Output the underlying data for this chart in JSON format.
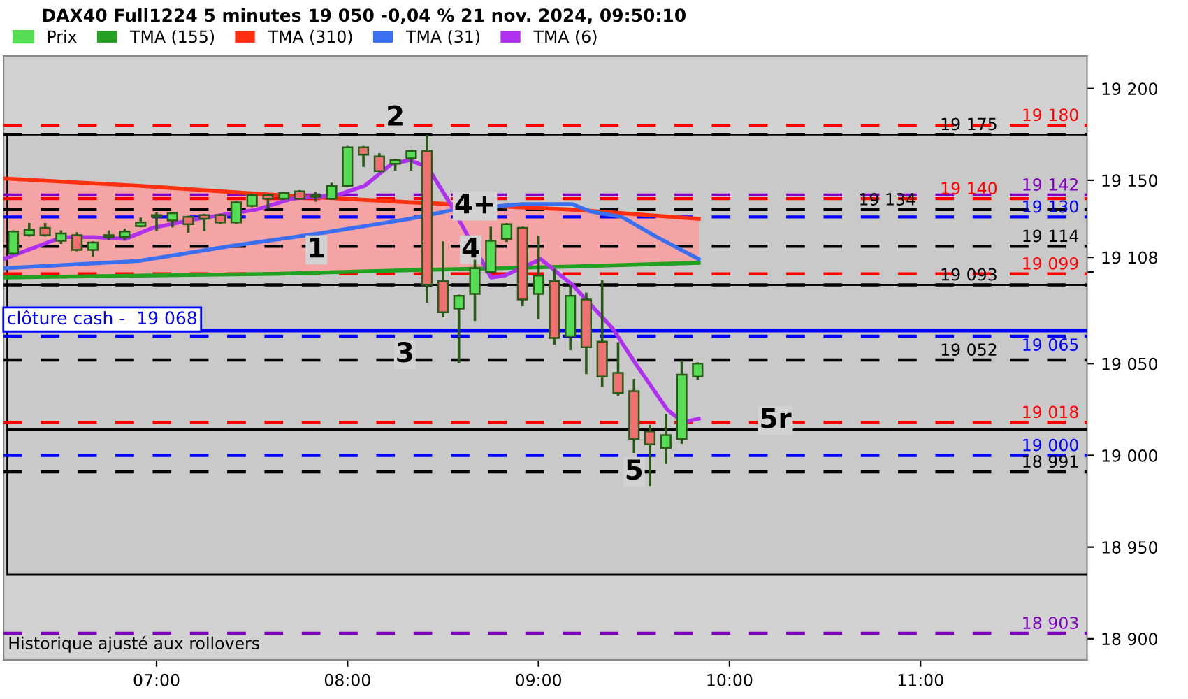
{
  "chart_data": {
    "type": "candlestick",
    "title": "DAX40 Full1224 5 minutes 19 050 -0,04 % 21 nov. 2024, 09:50:10",
    "xlim": [
      6.199,
      11.872
    ],
    "ylim": [
      18888.5,
      19217.8
    ],
    "xticks": [
      {
        "value": 7,
        "label": "07:00"
      },
      {
        "value": 8,
        "label": "08:00"
      },
      {
        "value": 9,
        "label": "09:00"
      },
      {
        "value": 10,
        "label": "10:00"
      },
      {
        "value": 11,
        "label": "11:00"
      }
    ],
    "yticks": [
      {
        "value": 18900,
        "label": "18 900"
      },
      {
        "value": 18950,
        "label": "18 950"
      },
      {
        "value": 19000,
        "label": "19 000"
      },
      {
        "value": 19050,
        "label": "19 050"
      },
      {
        "value": 19100,
        "label": null
      },
      {
        "value": 19108,
        "label": "19 108"
      },
      {
        "value": 19150,
        "label": "19 150"
      },
      {
        "value": 19200,
        "label": "19 200"
      }
    ],
    "grid": false,
    "legend": "top left",
    "series": [
      {
        "name": "Prix",
        "colors": [
          "#55dd55",
          "#55dd55",
          "#ee7070",
          "#55dd55",
          "#ee7070",
          "#55dd55",
          "#55dd55",
          "#55dd55",
          "#55dd55",
          "#55dd55",
          "#55dd55",
          "#ee7070",
          "#ee7070",
          "#ee7070",
          "#55dd55",
          "#55dd55",
          "#ee7070",
          "#55dd55",
          "#ee7070",
          "#55dd55",
          "#55dd55",
          "#55dd55",
          "#ee7070",
          "#ee7070",
          "#55dd55",
          "#55dd55",
          "#ee7070",
          "#ee7070",
          "#55dd55",
          "#55dd55",
          "#55dd55",
          "#55dd55",
          "#ee7070",
          "#55dd55",
          "#ee7070",
          "#55dd55",
          "#ee7070",
          "#ee7070",
          "#ee7070",
          "#ee7070",
          "#ee7070",
          "#55dd55",
          "#55dd55",
          "#55dd55"
        ],
        "x": [
          6.25,
          6.3333,
          6.4167,
          6.5,
          6.5833,
          6.6667,
          6.75,
          6.8333,
          6.9167,
          7,
          7.0833,
          7.1667,
          7.25,
          7.3333,
          7.4167,
          7.5,
          7.5833,
          7.6667,
          7.75,
          7.8333,
          7.9167,
          8,
          8.0833,
          8.1667,
          8.25,
          8.3333,
          8.4167,
          8.5,
          8.5833,
          8.6667,
          8.75,
          8.8333,
          8.9167,
          9,
          9.0833,
          9.1667,
          9.25,
          9.3333,
          9.4167,
          9.5,
          9.5833,
          9.6667,
          9.75,
          9.8333
        ],
        "ohlc": [
          [
            19110,
            19122,
            19110,
            19122
          ],
          [
            19120,
            19126,
            19120,
            19123
          ],
          [
            19124,
            19126,
            19120,
            19120
          ],
          [
            19117,
            19122,
            19116,
            19121
          ],
          [
            19120,
            19121,
            19112,
            19112
          ],
          [
            19112,
            19116,
            19109,
            19116
          ],
          [
            19119,
            19122,
            19118,
            19120
          ],
          [
            19119,
            19123,
            19118,
            19122
          ],
          [
            19125,
            19129,
            19125,
            19127
          ],
          [
            19130,
            19132,
            19123,
            19131
          ],
          [
            19128,
            19132,
            19125,
            19132
          ],
          [
            19130,
            19130,
            19122,
            19126
          ],
          [
            19131,
            19131,
            19123,
            19129
          ],
          [
            19131,
            19131,
            19127,
            19127
          ],
          [
            19127,
            19138,
            19127,
            19138
          ],
          [
            19136,
            19142,
            19136,
            19142
          ],
          [
            19142,
            19142,
            19135,
            19140
          ],
          [
            19140,
            19143,
            19140,
            19143
          ],
          [
            19144,
            19144,
            19140,
            19140
          ],
          [
            19141,
            19143,
            19139,
            19142
          ],
          [
            19140,
            19148,
            19140,
            19147
          ],
          [
            19147,
            19168,
            19147,
            19168
          ],
          [
            19168,
            19168,
            19158,
            19164
          ],
          [
            19163,
            19164,
            19155,
            19155
          ],
          [
            19159,
            19161,
            19156,
            19161
          ],
          [
            19162,
            19166,
            19156,
            19166
          ],
          [
            19166,
            19174,
            19084,
            19093
          ],
          [
            19095,
            19116,
            19076,
            19078
          ],
          [
            19080,
            19087,
            19051,
            19087
          ],
          [
            19088,
            19106,
            19074,
            19102
          ],
          [
            19100,
            19124,
            19100,
            19117
          ],
          [
            19118,
            19126,
            19117,
            19126
          ],
          [
            19124,
            19124,
            19082,
            19085
          ],
          [
            19088,
            19119,
            19075,
            19098
          ],
          [
            19095,
            19101,
            19061,
            19064
          ],
          [
            19065,
            19092,
            19058,
            19087
          ],
          [
            19085,
            19088,
            19045,
            19059
          ],
          [
            19062,
            19095,
            19038,
            19043
          ],
          [
            19045,
            19061,
            19033,
            19034
          ],
          [
            19035,
            19041,
            19002,
            19009
          ],
          [
            19013,
            19016,
            18984,
            19006
          ],
          [
            19004,
            19022,
            18996,
            19011
          ],
          [
            19009,
            19051,
            19007,
            19044
          ],
          [
            19043,
            19050,
            19042,
            19050
          ]
        ]
      },
      {
        "name": "TMA (155)",
        "type": "line",
        "color": "#22a022",
        "x": [
          6.199,
          6.908,
          7.617,
          8.326,
          9.177,
          9.839
        ],
        "values": [
          19097,
          19098,
          19099,
          19101,
          19103,
          19105
        ]
      },
      {
        "name": "TMA (310)",
        "type": "line",
        "color": "#ff3010",
        "x": [
          6.199,
          6.908,
          7.617,
          8.326,
          9.177,
          9.839
        ],
        "values": [
          19151,
          19147,
          19142,
          19138,
          19134,
          19129
        ],
        "lower": [
          19097,
          19098,
          19099,
          19101,
          19103,
          19105
        ],
        "upper": [
          19151,
          19147,
          19142,
          19138,
          19134,
          19129
        ]
      },
      {
        "name": "TMA (31)",
        "type": "line",
        "color": "#3a70f0",
        "x": [
          6.199,
          6.908,
          7.381,
          7.853,
          8.326,
          8.562,
          8.917,
          9.177,
          9.272,
          9.437,
          9.603,
          9.839
        ],
        "values": [
          19102,
          19106,
          19114,
          19121,
          19129,
          19134,
          19137,
          19137,
          19133,
          19130,
          19120,
          19107
        ]
      },
      {
        "name": "TMA (6)",
        "type": "line",
        "color": "#b030f0",
        "x": [
          6.199,
          6.505,
          6.671,
          6.837,
          6.979,
          7.215,
          7.523,
          7.711,
          7.948,
          8.09,
          8.232,
          8.326,
          8.421,
          8.48,
          8.539,
          8.633,
          8.752,
          8.823,
          9.012,
          9.177,
          9.39,
          9.508,
          9.674,
          9.757,
          9.839
        ],
        "values": [
          19107,
          19119,
          19119,
          19118,
          19124,
          19129,
          19134,
          19140,
          19142,
          19147,
          19159,
          19161,
          19157,
          19147,
          19137,
          19119,
          19097,
          19098,
          19107,
          19093,
          19069,
          19050,
          19025,
          19018,
          19020
        ]
      }
    ],
    "ref_lines": [
      {
        "axis": "y",
        "value": 19180,
        "label": "19 180",
        "color": "#ff0000",
        "line_style": "dashed"
      },
      {
        "axis": "y",
        "value": 19175,
        "label": "19 175",
        "color": "#000000",
        "line_style": "dashed"
      },
      {
        "axis": "y",
        "value": 19142,
        "label": "19 142",
        "color": "#8000c0",
        "line_style": "dashed"
      },
      {
        "axis": "y",
        "value": 19140,
        "label": "19 140",
        "color": "#ff0000",
        "line_style": "dashed"
      },
      {
        "axis": "y",
        "value": 19134,
        "label": "19 134",
        "color": "#000000",
        "line_style": "dashed"
      },
      {
        "axis": "y",
        "value": 19130,
        "label": "19 130",
        "color": "#0000ff",
        "line_style": "dashed"
      },
      {
        "axis": "y",
        "value": 19114,
        "label": "19 114",
        "color": "#000000",
        "line_style": "dashed"
      },
      {
        "axis": "y",
        "value": 19099,
        "label": "19 099",
        "color": "#ff0000",
        "line_style": "dashed"
      },
      {
        "axis": "y",
        "value": 19093,
        "label": "19 093",
        "color": "#000000",
        "line_style": "dashed"
      },
      {
        "axis": "y",
        "value": 19068,
        "label": "clôture cash -  19 068",
        "color": "#0000ff",
        "line_style": "solid"
      },
      {
        "axis": "y",
        "value": 19065,
        "label": "19 065",
        "color": "#0000ff",
        "line_style": "dashed"
      },
      {
        "axis": "y",
        "value": 19052,
        "label": "19 052",
        "color": "#000000",
        "line_style": "dashed"
      },
      {
        "axis": "y",
        "value": 19018,
        "label": "19 018",
        "color": "#ff0000",
        "line_style": "dashed"
      },
      {
        "axis": "y",
        "value": 19000,
        "label": "19 000",
        "color": "#0000ff",
        "line_style": "dashed"
      },
      {
        "axis": "y",
        "value": 18991,
        "label": "18 991",
        "color": "#000000",
        "line_style": "dashed"
      },
      {
        "axis": "y",
        "value": 18903,
        "label": "18 903",
        "color": "#8000c0",
        "line_style": "dashed"
      }
    ],
    "bands": [
      {
        "axis": "y",
        "from": 19093,
        "to": 19175,
        "color": "#000000"
      },
      {
        "axis": "y",
        "from": 19014,
        "to": 19093,
        "color": "#000000"
      },
      {
        "axis": "y",
        "from": 18935,
        "to": 19014,
        "color": "#000000"
      }
    ],
    "annotations": [
      {
        "text": "1",
        "x": 7.837,
        "y": 19112
      },
      {
        "text": "2",
        "x": 8.25,
        "y": 19184
      },
      {
        "text": "3",
        "x": 8.3,
        "y": 19055
      },
      {
        "text": "4+",
        "x": 8.667,
        "y": 19136
      },
      {
        "text": "4",
        "x": 8.645,
        "y": 19112
      },
      {
        "text": "5",
        "x": 9.5,
        "y": 18991
      },
      {
        "text": "5r",
        "x": 10.24,
        "y": 19019
      },
      "Historique ajusté aux rollovers"
    ]
  }
}
